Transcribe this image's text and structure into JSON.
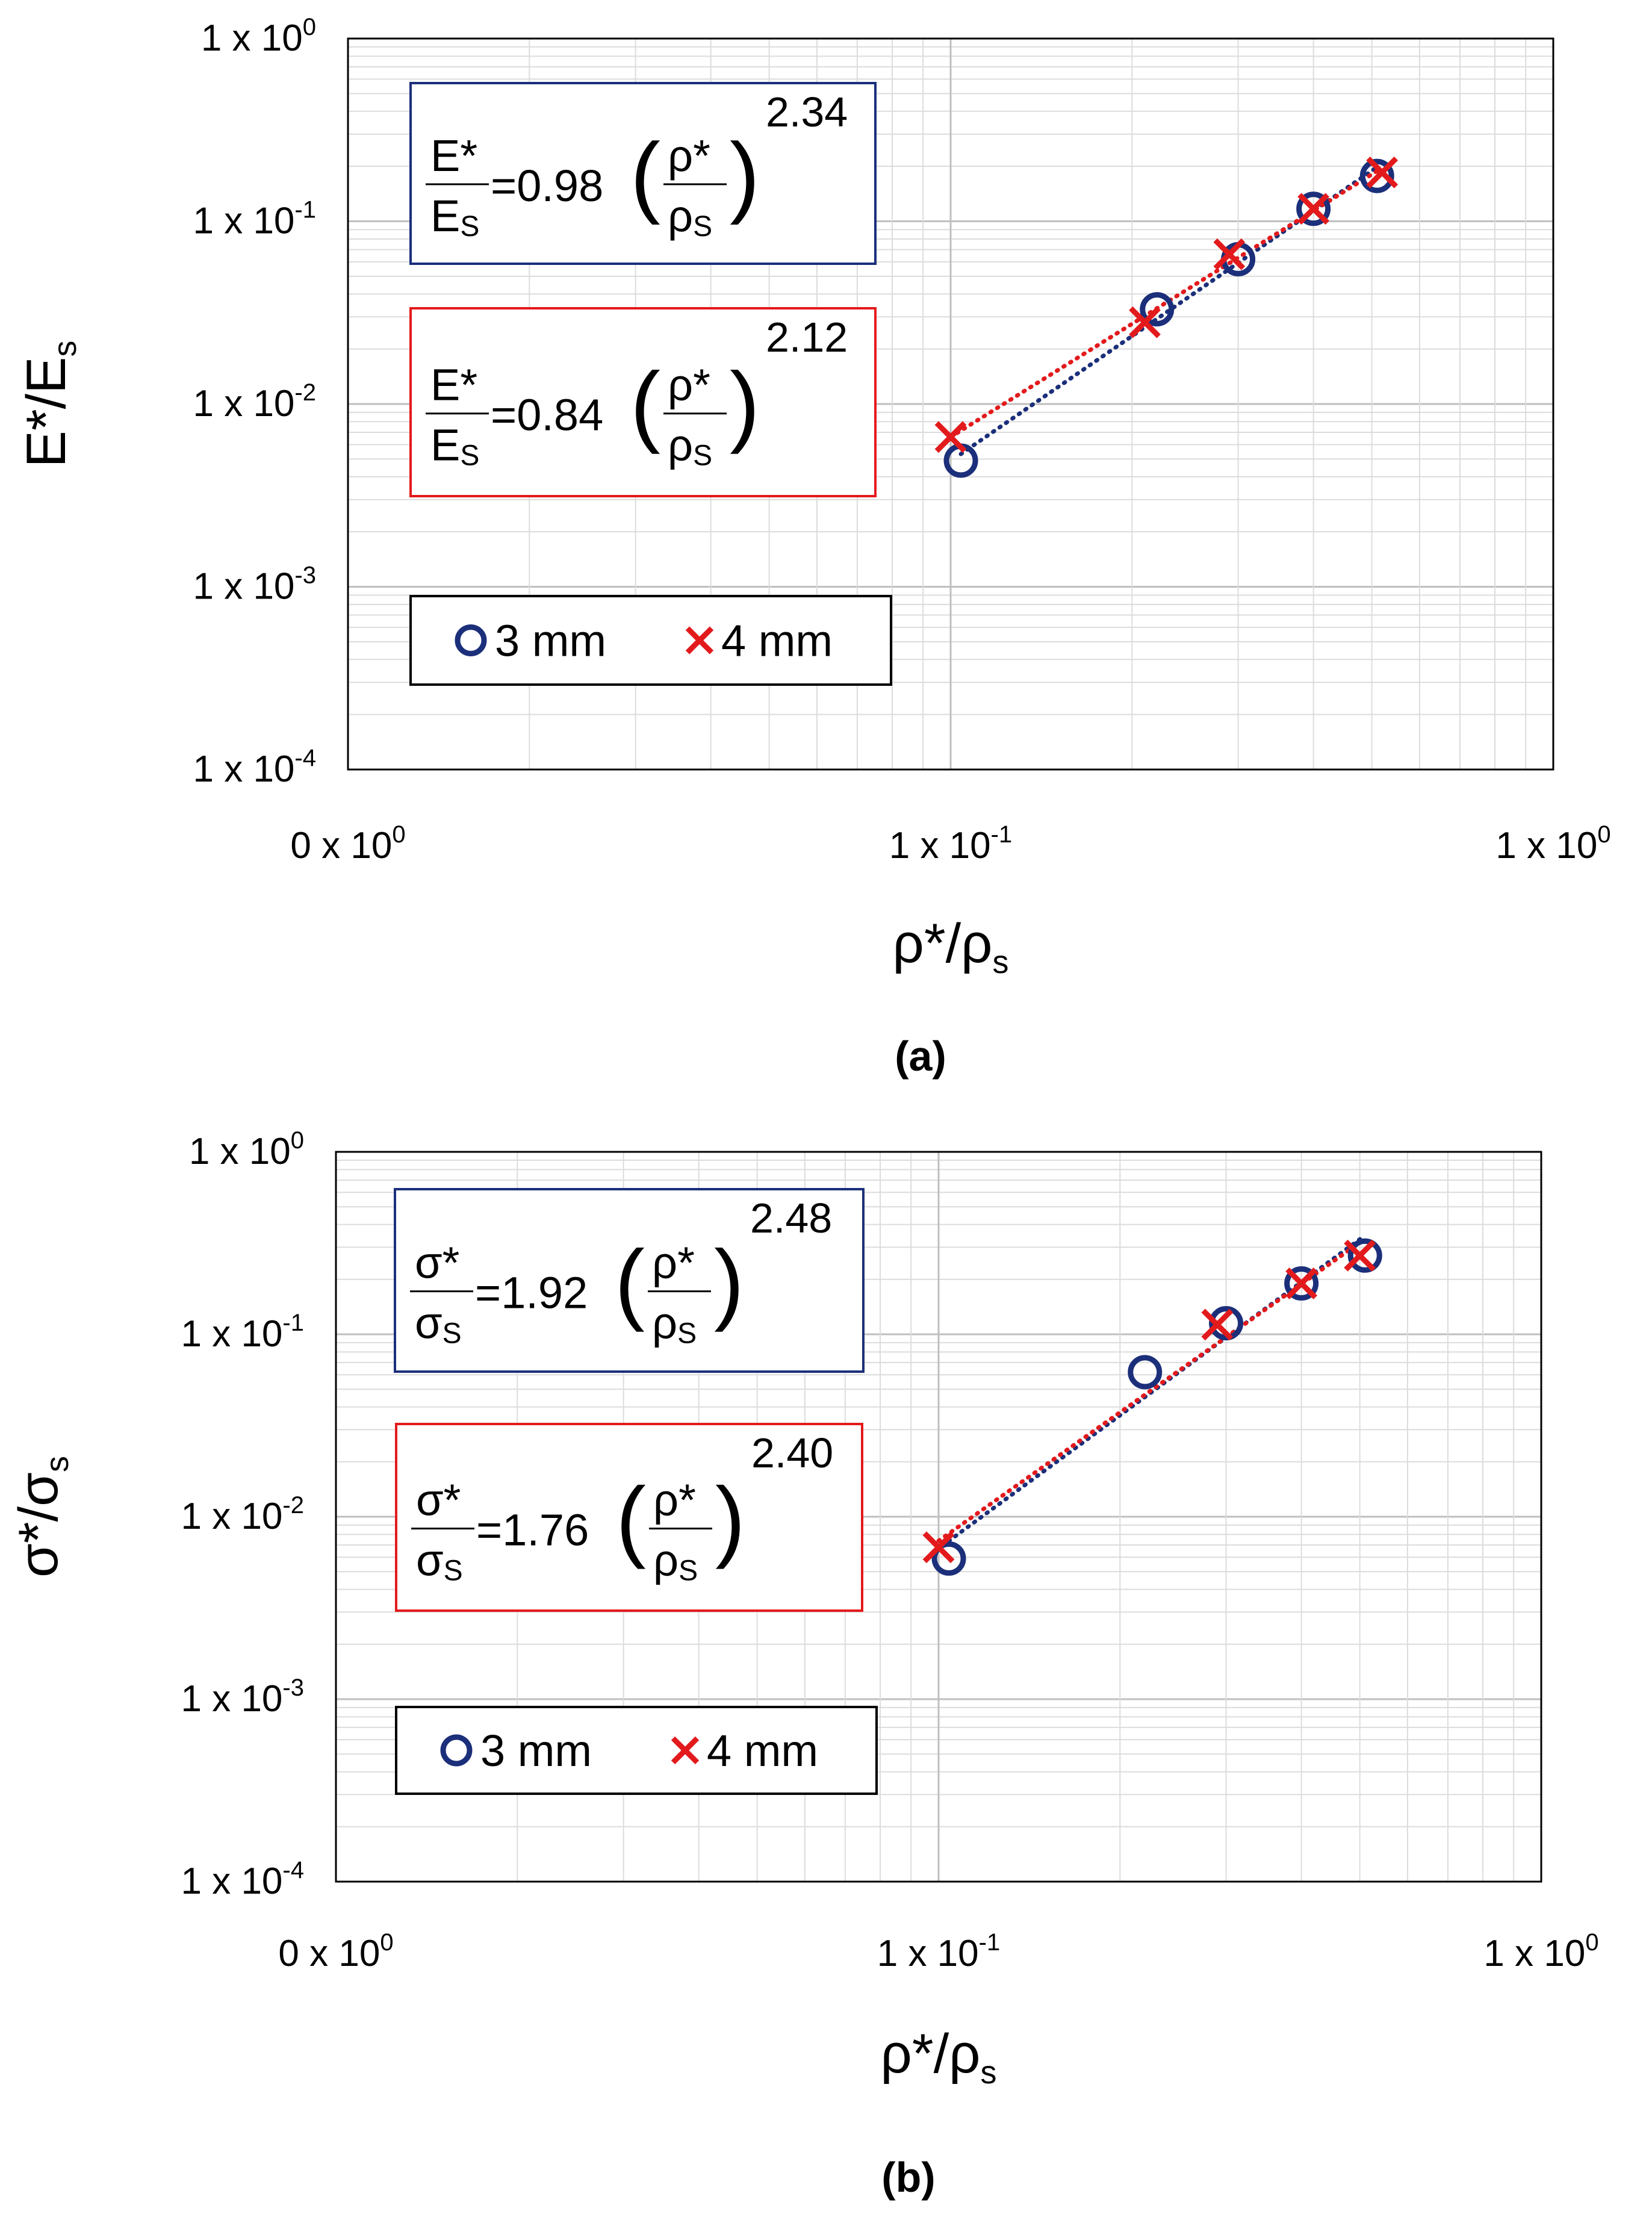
{
  "chart_data": [
    {
      "type": "scatter",
      "caption": "(a)",
      "xlabel": {
        "main": "ρ*/ρ",
        "sub": "s"
      },
      "ylabel": {
        "main": "E*/E",
        "sub": "s"
      },
      "xscale": "log",
      "yscale": "log",
      "xlim": [
        0.01,
        1
      ],
      "ylim": [
        0.0001,
        1
      ],
      "grid": true,
      "x_tick_labels": [
        {
          "mantissa": "0 x 10",
          "exp": "0"
        },
        {
          "mantissa": "1 x 10",
          "exp": "-1"
        },
        {
          "mantissa": "1 x 10",
          "exp": "0"
        }
      ],
      "y_tick_labels": [
        {
          "mantissa": "1 x 10",
          "exp": "-4"
        },
        {
          "mantissa": "1 x 10",
          "exp": "-3"
        },
        {
          "mantissa": "1 x 10",
          "exp": "-2"
        },
        {
          "mantissa": "1 x 10",
          "exp": "-1"
        },
        {
          "mantissa": "1 x 10",
          "exp": "0"
        }
      ],
      "series": [
        {
          "name": "3 mm",
          "marker": "circle",
          "color": "#1b2f7a",
          "x": [
            0.104,
            0.22,
            0.3,
            0.4,
            0.51
          ],
          "y": [
            0.0049,
            0.033,
            0.062,
            0.117,
            0.177
          ],
          "fit": {
            "lhs_num": "E*",
            "lhs_den": "E",
            "lhs_den_sub": "S",
            "coef": "=0.98",
            "rhs_num": "ρ*",
            "rhs_den": "ρ",
            "rhs_den_sub": "S",
            "exponent": "2.34"
          }
        },
        {
          "name": "4 mm",
          "marker": "x",
          "color": "#e31a1c",
          "x": [
            0.1,
            0.21,
            0.29,
            0.4,
            0.52
          ],
          "y": [
            0.0066,
            0.028,
            0.066,
            0.117,
            0.185
          ],
          "fit": {
            "lhs_num": "E*",
            "lhs_den": "E",
            "lhs_den_sub": "S",
            "coef": "=0.84",
            "rhs_num": "ρ*",
            "rhs_den": "ρ",
            "rhs_den_sub": "S",
            "exponent": "2.12"
          }
        }
      ],
      "legend": [
        "3 mm",
        "4 mm"
      ]
    },
    {
      "type": "scatter",
      "caption": "(b)",
      "xlabel": {
        "main": "ρ*/ρ",
        "sub": "s"
      },
      "ylabel": {
        "main": "σ*/σ",
        "sub": "s"
      },
      "xscale": "log",
      "yscale": "log",
      "xlim": [
        0.01,
        1
      ],
      "ylim": [
        0.0001,
        1
      ],
      "grid": true,
      "x_tick_labels": [
        {
          "mantissa": "0 x 10",
          "exp": "0"
        },
        {
          "mantissa": "1 x 10",
          "exp": "-1"
        },
        {
          "mantissa": "1 x 10",
          "exp": "0"
        }
      ],
      "y_tick_labels": [
        {
          "mantissa": "1 x 10",
          "exp": "-4"
        },
        {
          "mantissa": "1 x 10",
          "exp": "-3"
        },
        {
          "mantissa": "1 x 10",
          "exp": "-2"
        },
        {
          "mantissa": "1 x 10",
          "exp": "-1"
        },
        {
          "mantissa": "1 x 10",
          "exp": "0"
        }
      ],
      "series": [
        {
          "name": "3 mm",
          "marker": "circle",
          "color": "#1b2f7a",
          "x": [
            0.104,
            0.22,
            0.3,
            0.4,
            0.51
          ],
          "y": [
            0.0059,
            0.062,
            0.115,
            0.19,
            0.27
          ],
          "fit": {
            "lhs_num": "σ*",
            "lhs_den": "σ",
            "lhs_den_sub": "S",
            "coef": "=1.92",
            "rhs_num": "ρ*",
            "rhs_den": "ρ",
            "rhs_den_sub": "S",
            "exponent": "2.48"
          }
        },
        {
          "name": "4 mm",
          "marker": "x",
          "color": "#e31a1c",
          "x": [
            0.1,
            0.29,
            0.4,
            0.5
          ],
          "y": [
            0.0068,
            0.113,
            0.19,
            0.27
          ],
          "fit": {
            "lhs_num": "σ*",
            "lhs_den": "σ",
            "lhs_den_sub": "S",
            "coef": "=1.76",
            "rhs_num": "ρ*",
            "rhs_den": "ρ",
            "rhs_den_sub": "S",
            "exponent": "2.40"
          }
        }
      ],
      "legend": [
        "3 mm",
        "4 mm"
      ]
    }
  ]
}
